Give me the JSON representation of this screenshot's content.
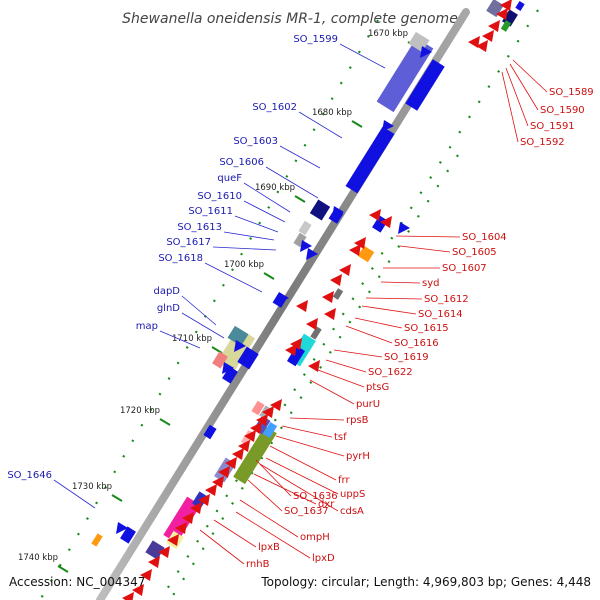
{
  "title": "Shewanella oneidensis MR-1, complete genome",
  "accession": "Accession: NC_004347",
  "topology": "Topology: circular; Length: 4,969,803 bp; Genes: 4,448",
  "kbp_ticks": [
    "1670 kbp",
    "1680 kbp",
    "1690 kbp",
    "1700 kbp",
    "1710 kbp",
    "1720 kbp",
    "1730 kbp",
    "1740 kbp"
  ],
  "left_labels": [
    "SO_1599",
    "SO_1602",
    "SO_1603",
    "SO_1606",
    "queF",
    "SO_1610",
    "SO_1611",
    "SO_1613",
    "SO_1617",
    "SO_1618",
    "dapD",
    "glnD",
    "map",
    "SO_1646"
  ],
  "right_labels": [
    "SO_1589",
    "SO_1590",
    "SO_1591",
    "SO_1592",
    "SO_1604",
    "SO_1605",
    "SO_1607",
    "syd",
    "SO_1612",
    "SO_1614",
    "SO_1615",
    "SO_1616",
    "SO_1619",
    "SO_1622",
    "ptsG",
    "purU",
    "rpsB",
    "tsf",
    "pyrH",
    "frr",
    "uppS",
    "cdsA",
    "dxr",
    "SO_1636",
    "SO_1637",
    "ompH",
    "lpxD",
    "lpxB",
    "rnhB"
  ],
  "colors": {
    "forward": "#1010e0",
    "reverse": "#e01010",
    "axis": "#8c8c8c",
    "dots": "#1a8a1a"
  }
}
